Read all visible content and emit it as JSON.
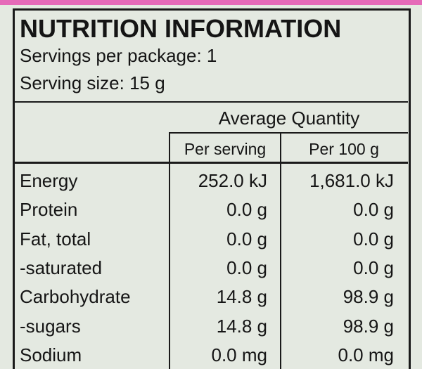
{
  "header": {
    "title": "NUTRITION INFORMATION",
    "servings_per_package": "Servings per package: 1",
    "serving_size": "Serving size: 15 g"
  },
  "table": {
    "group_header": "Average Quantity",
    "columns": [
      "Per serving",
      "Per 100 g"
    ],
    "rows": [
      [
        "Energy",
        "252.0 kJ",
        "1,681.0 kJ"
      ],
      [
        "Protein",
        "0.0 g",
        "0.0 g"
      ],
      [
        "Fat, total",
        "0.0 g",
        "0.0 g"
      ],
      [
        "-saturated",
        "0.0 g",
        "0.0 g"
      ],
      [
        "Carbohydrate",
        "14.8 g",
        "98.9 g"
      ],
      [
        "-sugars",
        "14.8 g",
        "98.9 g"
      ],
      [
        "Sodium",
        "0.0 mg",
        "0.0 mg"
      ]
    ]
  }
}
